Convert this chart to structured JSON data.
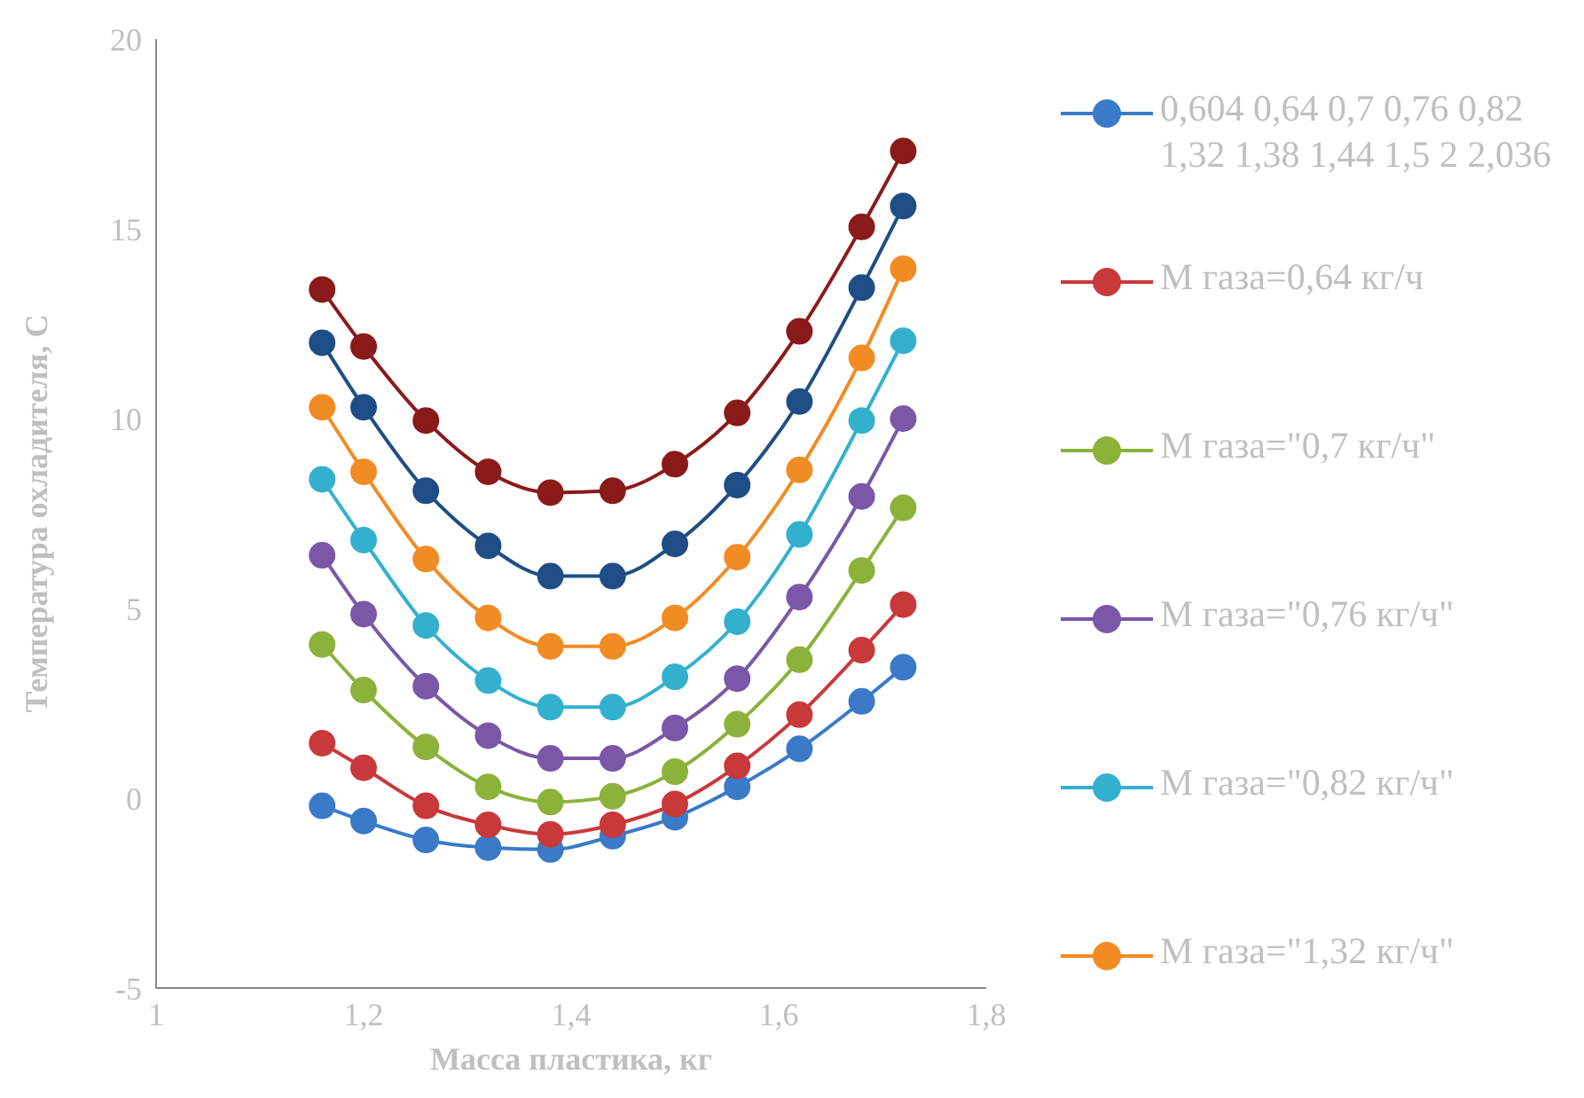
{
  "chart_data": {
    "type": "line",
    "xlabel": "Масса пластика, кг",
    "ylabel": "Температура охладителя, С",
    "x": [
      1.16,
      1.2,
      1.26,
      1.32,
      1.38,
      1.44,
      1.5,
      1.56,
      1.62,
      1.68,
      1.72
    ],
    "xlim": [
      1,
      1.8
    ],
    "xticks": [
      {
        "value": 1,
        "label": "1"
      },
      {
        "value": 1.2,
        "label": "1,2"
      },
      {
        "value": 1.4,
        "label": "1,4"
      },
      {
        "value": 1.6,
        "label": "1,6"
      },
      {
        "value": 1.8,
        "label": "1,8"
      }
    ],
    "ylim": [
      -5,
      20
    ],
    "yticks": [
      -5,
      0,
      5,
      10,
      15,
      20
    ],
    "grid": false,
    "legend": "right",
    "marker": "circle",
    "line_style": "solid",
    "series": [
      {
        "name": "0,604 0,64 0,7 0,76 0,82 1,32 1,38 1,44 1,5 2 2,036",
        "color": "#3a7ac8",
        "values": [
          -0.2,
          -0.6,
          -1.1,
          -1.3,
          -1.35,
          -1.0,
          -0.5,
          0.3,
          1.3,
          2.55,
          3.45
        ]
      },
      {
        "name": "М газа=0,64 кг/ч",
        "color": "#c8393b",
        "values": [
          1.45,
          0.8,
          -0.2,
          -0.7,
          -0.95,
          -0.7,
          -0.15,
          0.85,
          2.2,
          3.9,
          5.1
        ]
      },
      {
        "name": "М газа=\"0,7 кг/ч\"",
        "color": "#8cb23c",
        "values": [
          4.05,
          2.85,
          1.35,
          0.3,
          -0.1,
          0.05,
          0.7,
          1.95,
          3.65,
          6.0,
          7.65
        ]
      },
      {
        "name": "М газа=\"0,76 кг/ч\"",
        "color": "#7a57a8",
        "values": [
          6.4,
          4.85,
          2.95,
          1.65,
          1.05,
          1.05,
          1.85,
          3.15,
          5.3,
          7.95,
          10.0
        ]
      },
      {
        "name": "М газа=\"0,82 кг/ч\"",
        "color": "#34b0cf",
        "values": [
          8.4,
          6.8,
          4.55,
          3.1,
          2.4,
          2.4,
          3.2,
          4.65,
          6.95,
          9.95,
          12.05
        ]
      },
      {
        "name": "М газа=\"1,32 кг/ч\"",
        "color": "#f18c25",
        "values": [
          10.3,
          8.6,
          6.3,
          4.75,
          4.0,
          4.0,
          4.75,
          6.35,
          8.65,
          11.6,
          13.95
        ]
      },
      {
        "color": "#1f4e86",
        "values": [
          12.0,
          10.3,
          8.1,
          6.65,
          5.85,
          5.85,
          6.7,
          8.25,
          10.45,
          13.45,
          15.6
        ]
      },
      {
        "color": "#8b1a1a",
        "values": [
          13.4,
          11.9,
          9.95,
          8.6,
          8.05,
          8.1,
          8.8,
          10.15,
          12.3,
          15.05,
          17.05
        ]
      }
    ]
  }
}
